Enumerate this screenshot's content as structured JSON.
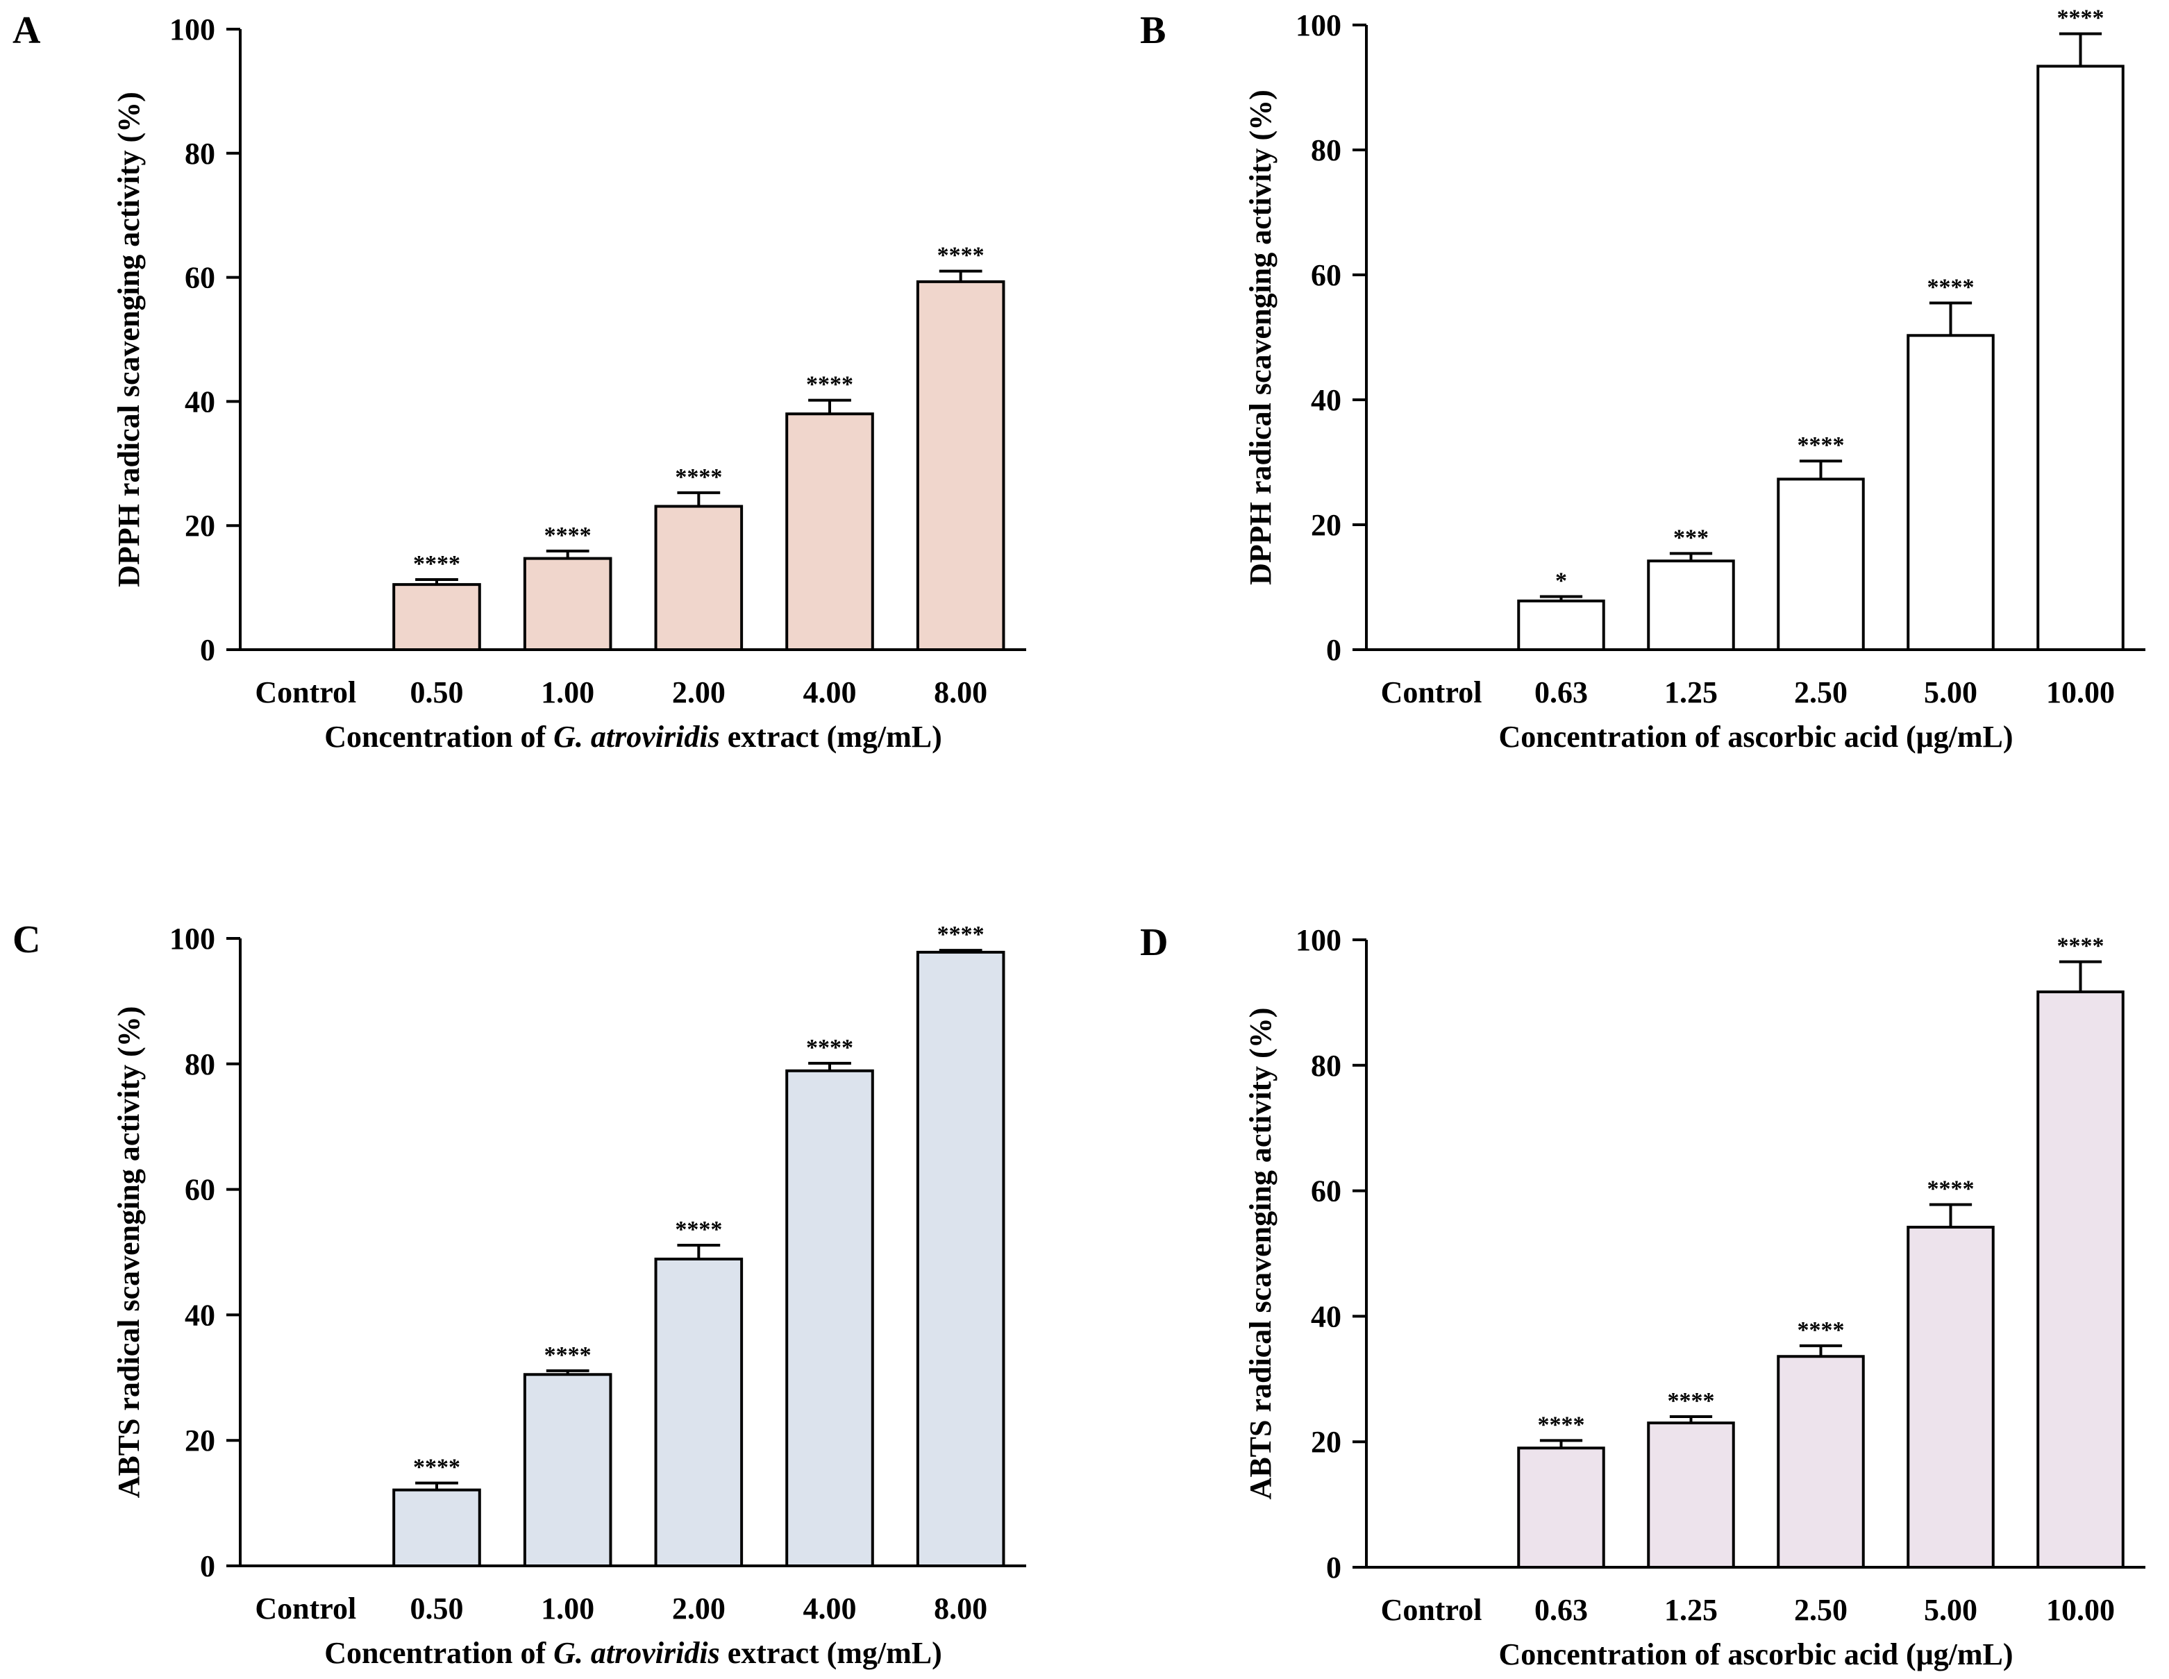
{
  "chart_data": [
    {
      "panel": "A",
      "type": "bar",
      "categories": [
        "Control",
        "0.50",
        "1.00",
        "2.00",
        "4.00",
        "8.00"
      ],
      "values": [
        0,
        10.5,
        14.7,
        23.1,
        38.0,
        59.3
      ],
      "errors": [
        0,
        0.8,
        1.2,
        2.2,
        2.2,
        1.7
      ],
      "significance": [
        "",
        "****",
        "****",
        "****",
        "****",
        "****"
      ],
      "xlabel_parts": [
        {
          "text": "Concentration of ",
          "italic": false
        },
        {
          "text": "G. atroviridis",
          "italic": true
        },
        {
          "text": " extract (mg/mL)",
          "italic": false
        }
      ],
      "ylabel": "DPPH radical scavenging activity (%)",
      "ylim": [
        0,
        100
      ],
      "yticks": [
        0,
        20,
        40,
        60,
        80,
        100
      ],
      "bar_color": "#f0d6cc",
      "grid": false
    },
    {
      "panel": "B",
      "type": "bar",
      "categories": [
        "Control",
        "0.63",
        "1.25",
        "2.50",
        "5.00",
        "10.00"
      ],
      "values": [
        0,
        7.8,
        14.2,
        27.3,
        50.3,
        93.4
      ],
      "errors": [
        0,
        0.7,
        1.2,
        2.9,
        5.2,
        5.2
      ],
      "significance": [
        "",
        "*",
        "***",
        "****",
        "****",
        "****"
      ],
      "xlabel_parts": [
        {
          "text": "Concentration of ascorbic acid (μg/mL)",
          "italic": false
        }
      ],
      "ylabel": "DPPH radical scavenging activity (%)",
      "ylim": [
        0,
        100
      ],
      "yticks": [
        0,
        20,
        40,
        60,
        80,
        100
      ],
      "bar_color": "#ffffff",
      "grid": false
    },
    {
      "panel": "C",
      "type": "bar",
      "categories": [
        "Control",
        "0.50",
        "1.00",
        "2.00",
        "4.00",
        "8.00"
      ],
      "values": [
        0,
        12.1,
        30.5,
        48.9,
        78.9,
        97.8
      ],
      "errors": [
        0,
        1.1,
        0.6,
        2.2,
        1.2,
        0.3
      ],
      "significance": [
        "",
        "****",
        "****",
        "****",
        "****",
        "****"
      ],
      "xlabel_parts": [
        {
          "text": "Concentration of ",
          "italic": false
        },
        {
          "text": "G. atroviridis",
          "italic": true
        },
        {
          "text": " extract (mg/mL)",
          "italic": false
        }
      ],
      "ylabel": "ABTS radical scavenging activity (%)",
      "ylim": [
        0,
        100
      ],
      "yticks": [
        0,
        20,
        40,
        60,
        80,
        100
      ],
      "bar_color": "#dce3ed",
      "grid": false
    },
    {
      "panel": "D",
      "type": "bar",
      "categories": [
        "Control",
        "0.63",
        "1.25",
        "2.50",
        "5.00",
        "10.00"
      ],
      "values": [
        0,
        19.0,
        23.0,
        33.6,
        54.2,
        91.7
      ],
      "errors": [
        0,
        1.2,
        1.0,
        1.7,
        3.6,
        4.8
      ],
      "significance": [
        "",
        "****",
        "****",
        "****",
        "****",
        "****"
      ],
      "xlabel_parts": [
        {
          "text": "Concentration of ascorbic acid (μg/mL)",
          "italic": false
        }
      ],
      "ylabel": "ABTS radical scavenging activity (%)",
      "ylim": [
        0,
        100
      ],
      "yticks": [
        0,
        20,
        40,
        60,
        80,
        100
      ],
      "bar_color": "#ede3ec",
      "grid": false
    }
  ]
}
